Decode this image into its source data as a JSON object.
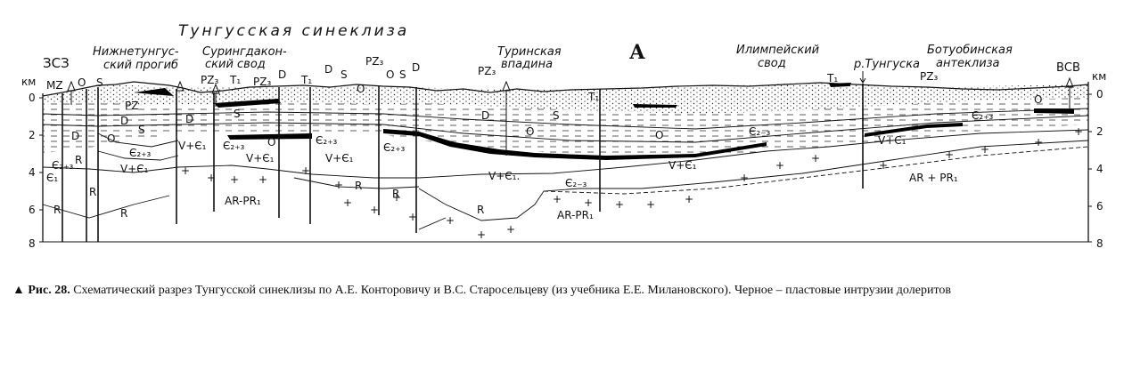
{
  "figure": {
    "title": "Тунгусская синеклиза",
    "panel_letter": "А",
    "dir_left": "ЗСЗ",
    "dir_right": "ВСВ",
    "unit_left": "км",
    "unit_right": "км",
    "depth_ticks": [
      "0",
      "2",
      "4",
      "6",
      "8"
    ],
    "structures": {
      "nizhnetung_1": "Нижнетунгус-",
      "nizhnetung_2": "ский прогиб",
      "suring_1": "Сурингдакон-",
      "suring_2": "ский свод",
      "turin_1": "Туринская",
      "turin_2": "впадина",
      "ilimp_1": "Илимпейский",
      "ilimp_2": "свод",
      "river": "р.Тунгуска",
      "botuob_1": "Ботуобинская",
      "botuob_2": "антеклиза"
    },
    "units": {
      "MZ": "MZ",
      "O": "O",
      "S": "S",
      "D": "D",
      "T1": "T₁",
      "PZ3": "PZ₃",
      "PZ": "PZ",
      "C1": "Є₁",
      "C23": "Є₂₊₃",
      "C2_3": "Є₂₋₃",
      "R": "R",
      "VC1": "V+Є₁",
      "VC1b": "V+Є₁.",
      "ARPR1": "AR-PR₁",
      "ARPR1b": "AR + PR₁"
    }
  },
  "caption": {
    "fig_label": "▲ Рис. 28.",
    "text": "Схематический разрез Тунгусской синеклизы по А.Е. Конторовичу и В.С. Старосельцеву (из учебника Е.Е. Милановского). Черное – пластовые интрузии долеритов"
  }
}
